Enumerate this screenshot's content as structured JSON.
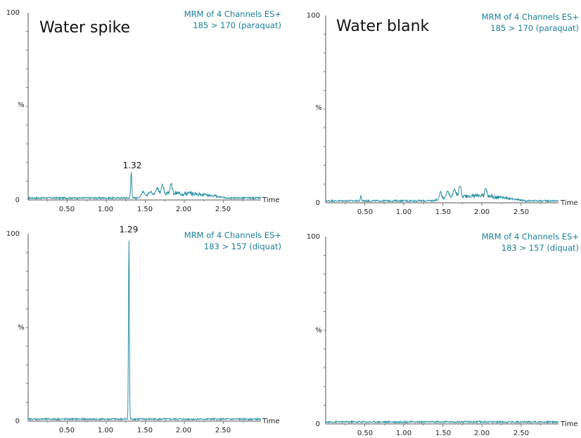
{
  "chart_data": [
    {
      "type": "line",
      "title": "Water spike",
      "header": [
        "MRM of 4 Channels ES+",
        "185 > 170 (paraquat)"
      ],
      "xlabel": "Time",
      "ylabel": "%",
      "xlim": [
        0.0,
        2.98
      ],
      "ylim": [
        0,
        100
      ],
      "x_ticks": [
        "0.50",
        "1.00",
        "1.50",
        "2.00",
        "2.50"
      ],
      "y_ticks": [
        "0",
        "100"
      ],
      "peak_label": "1.32",
      "peaks": [
        {
          "x": 1.32,
          "y": 14,
          "w": 0.01
        },
        {
          "x": 1.47,
          "y": 2.5,
          "w": 0.03
        },
        {
          "x": 1.56,
          "y": 2.5,
          "w": 0.03
        },
        {
          "x": 1.65,
          "y": 3.5,
          "w": 0.03
        },
        {
          "x": 1.72,
          "y": 5.5,
          "w": 0.02
        },
        {
          "x": 1.83,
          "y": 5,
          "w": 0.02
        }
      ],
      "hump": {
        "from": 1.38,
        "to": 2.55,
        "level": 2.5
      }
    },
    {
      "type": "line",
      "title": "Water blank",
      "header": [
        "MRM of 4 Channels ES+",
        "185 > 170 (paraquat)"
      ],
      "xlabel": "Time",
      "ylabel": "%",
      "xlim": [
        0.0,
        2.98
      ],
      "ylim": [
        0,
        100
      ],
      "x_ticks": [
        "0.50",
        "1.00",
        "1.50",
        "2.00",
        "2.50"
      ],
      "y_ticks": [
        "0",
        "100"
      ],
      "peak_label": "",
      "peaks": [
        {
          "x": 0.45,
          "y": 2.5,
          "w": 0.01
        },
        {
          "x": 1.47,
          "y": 4,
          "w": 0.02
        },
        {
          "x": 1.56,
          "y": 3.5,
          "w": 0.03
        },
        {
          "x": 1.65,
          "y": 4,
          "w": 0.03
        },
        {
          "x": 1.72,
          "y": 6,
          "w": 0.02
        },
        {
          "x": 2.05,
          "y": 4.5,
          "w": 0.02
        }
      ],
      "hump": {
        "from": 1.35,
        "to": 2.55,
        "level": 2.5
      }
    },
    {
      "type": "line",
      "title": "",
      "header": [
        "MRM of 4 Channels ES+",
        "183 > 157 (diquat)"
      ],
      "xlabel": "Time",
      "ylabel": "%",
      "xlim": [
        0.0,
        2.98
      ],
      "ylim": [
        0,
        100
      ],
      "x_ticks": [
        "0.50",
        "1.00",
        "1.50",
        "2.00",
        "2.50"
      ],
      "y_ticks": [
        "0",
        "100"
      ],
      "peak_label": "1.29",
      "peaks": [
        {
          "x": 1.29,
          "y": 98,
          "w": 0.008
        }
      ],
      "hump": {
        "from": 0.0,
        "to": 0.0,
        "level": 0
      }
    },
    {
      "type": "line",
      "title": "",
      "header": [
        "MRM of 4 Channels ES+",
        "183 > 157 (diquat)"
      ],
      "xlabel": "Time",
      "ylabel": "%",
      "xlim": [
        0.0,
        2.98
      ],
      "ylim": [
        0,
        100
      ],
      "x_ticks": [
        "0.50",
        "1.00",
        "1.50",
        "2.00",
        "2.50"
      ],
      "y_ticks": [
        "0",
        "100"
      ],
      "peak_label": "",
      "peaks": [],
      "hump": {
        "from": 0.0,
        "to": 0.0,
        "level": 0
      }
    }
  ]
}
